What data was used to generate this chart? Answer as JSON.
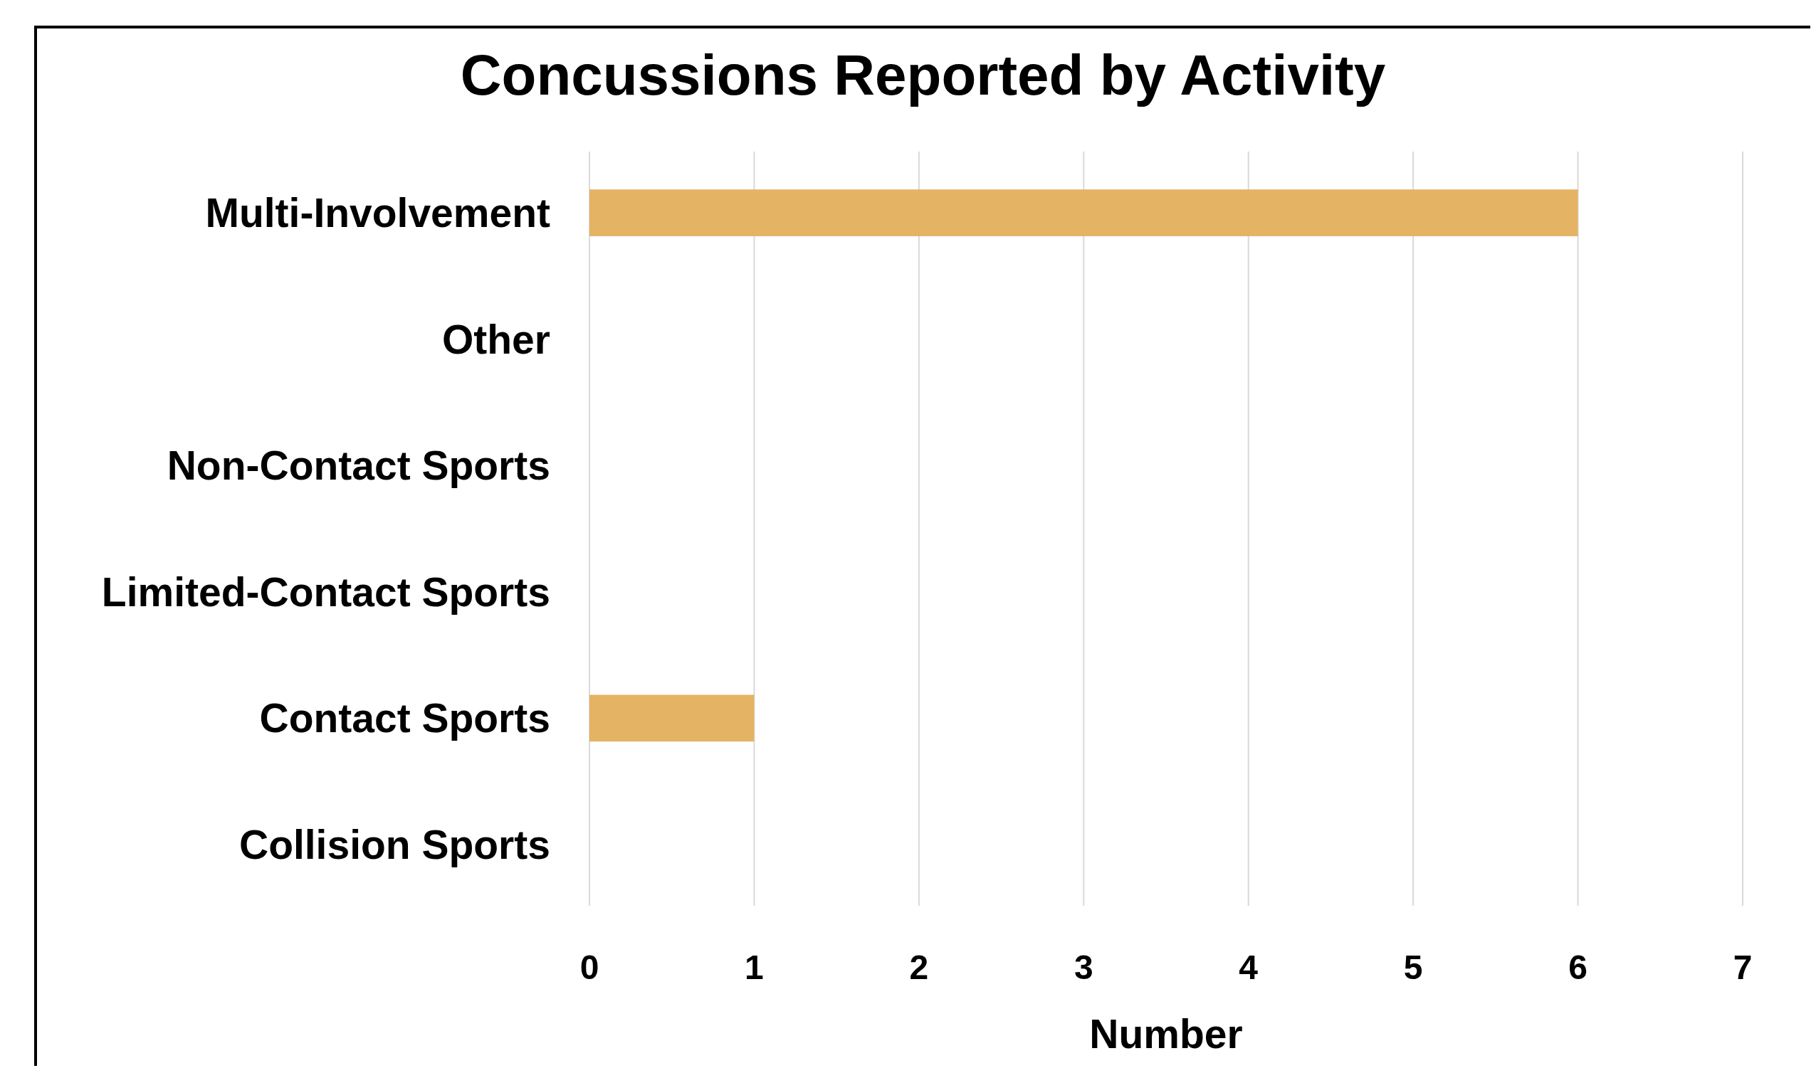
{
  "chart_data": {
    "type": "bar",
    "title": "Concussions Reported by Activity",
    "orientation": "horizontal",
    "categories": [
      "Multi-Involvement",
      "Other",
      "Non-Contact Sports",
      "Limited-Contact Sports",
      "Contact Sports",
      "Collision Sports"
    ],
    "values": [
      6,
      0,
      0,
      0,
      1,
      0
    ],
    "color": "#e4b363",
    "xlim": [
      0,
      7
    ],
    "xticks": [
      0,
      1,
      2,
      3,
      4,
      5,
      6,
      7
    ],
    "xlabel": "Number",
    "grid": "x"
  }
}
